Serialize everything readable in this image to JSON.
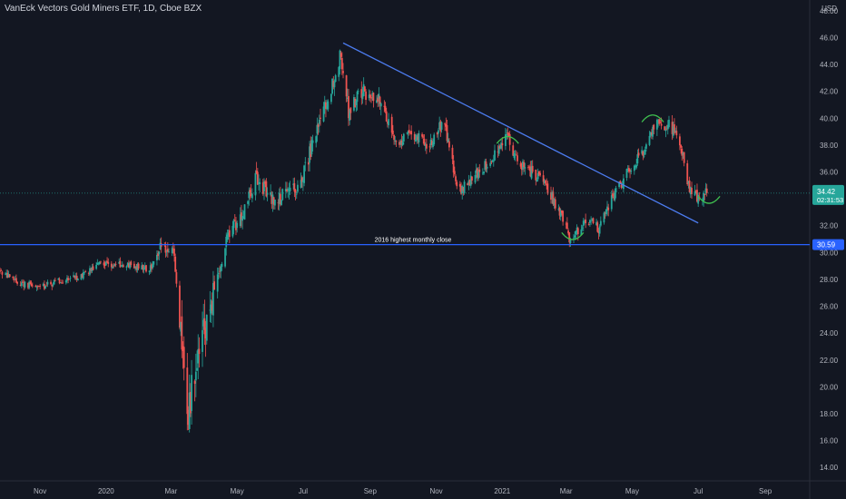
{
  "header": {
    "title": "VanEck Vectors Gold Miners ETF, 1D, Cboe BZX",
    "currency": "USD"
  },
  "chart_data": {
    "type": "candlestick",
    "title": "VanEck Vectors Gold Miners ETF, 1D, Cboe BZX",
    "ylabel": "USD",
    "ylim": [
      13.0,
      48.8
    ],
    "yticks": [
      "14.00",
      "16.00",
      "18.00",
      "20.00",
      "22.00",
      "24.00",
      "26.00",
      "28.00",
      "30.00",
      "32.00",
      "34.00",
      "36.00",
      "38.00",
      "40.00",
      "42.00",
      "44.00",
      "46.00",
      "48.00"
    ],
    "xticks": [
      "Nov",
      "2020",
      "Mar",
      "May",
      "Jul",
      "Sep",
      "Nov",
      "2021",
      "Mar",
      "May",
      "Jul",
      "Sep"
    ],
    "xlim": [
      "2019-09-25",
      "2021-10-12"
    ],
    "grid": false,
    "price_path": [
      [
        "2019-09-25",
        28.6
      ],
      [
        "2019-10-10",
        27.8
      ],
      [
        "2019-11-01",
        27.4
      ],
      [
        "2019-11-20",
        27.9
      ],
      [
        "2019-12-10",
        28.3
      ],
      [
        "2019-12-27",
        29.3
      ],
      [
        "2020-01-08",
        29.1
      ],
      [
        "2020-01-25",
        29.0
      ],
      [
        "2020-02-10",
        28.7
      ],
      [
        "2020-02-21",
        30.6
      ],
      [
        "2020-03-04",
        29.8
      ],
      [
        "2020-03-12",
        22.0
      ],
      [
        "2020-03-16",
        17.0
      ],
      [
        "2020-03-20",
        20.0
      ],
      [
        "2020-04-03",
        25.0
      ],
      [
        "2020-04-22",
        31.0
      ],
      [
        "2020-05-05",
        32.8
      ],
      [
        "2020-05-18",
        35.5
      ],
      [
        "2020-06-05",
        33.8
      ],
      [
        "2020-06-26",
        34.8
      ],
      [
        "2020-07-12",
        38.5
      ],
      [
        "2020-07-28",
        42.5
      ],
      [
        "2020-08-05",
        44.8
      ],
      [
        "2020-08-12",
        40.5
      ],
      [
        "2020-08-25",
        42.0
      ],
      [
        "2020-09-10",
        41.5
      ],
      [
        "2020-09-25",
        38.0
      ],
      [
        "2020-10-08",
        39.0
      ],
      [
        "2020-10-25",
        38.0
      ],
      [
        "2020-11-08",
        39.8
      ],
      [
        "2020-11-22",
        34.5
      ],
      [
        "2020-12-05",
        35.5
      ],
      [
        "2020-12-20",
        36.8
      ],
      [
        "2021-01-06",
        38.7
      ],
      [
        "2021-01-15",
        36.8
      ],
      [
        "2021-02-05",
        35.5
      ],
      [
        "2021-02-20",
        33.5
      ],
      [
        "2021-03-05",
        30.9
      ],
      [
        "2021-03-20",
        32.5
      ],
      [
        "2021-04-01",
        31.8
      ],
      [
        "2021-04-15",
        34.5
      ],
      [
        "2021-04-30",
        36.3
      ],
      [
        "2021-05-12",
        37.5
      ],
      [
        "2021-05-21",
        39.5
      ],
      [
        "2021-06-05",
        39.5
      ],
      [
        "2021-06-15",
        38.0
      ],
      [
        "2021-06-22",
        35.0
      ],
      [
        "2021-07-02",
        34.0
      ],
      [
        "2021-07-09",
        34.42
      ]
    ],
    "last_price": {
      "value": 34.42,
      "label": "34.42",
      "countdown": "02:31:53"
    },
    "horizontal_line": {
      "value": 30.59,
      "label": "30.59",
      "annotation": "2016 highest monthly close"
    },
    "trendline": {
      "from": [
        "2020-08-07",
        45.6
      ],
      "to": [
        "2021-07-01",
        32.2
      ]
    },
    "arcs": [
      {
        "center": [
          "2021-01-06",
          38.4
        ],
        "shape": "top"
      },
      {
        "center": [
          "2021-03-07",
          31.2
        ],
        "shape": "bottom"
      },
      {
        "center": [
          "2021-05-20",
          40.0
        ],
        "shape": "top"
      },
      {
        "center": [
          "2021-07-11",
          33.9
        ],
        "shape": "bottom"
      }
    ],
    "colors": {
      "background": "#131722",
      "up": "#26a69a",
      "down": "#ef5350",
      "trendline": "#4c7cf0",
      "support_line": "#2962ff",
      "last_price_line": "#26a69a",
      "arcs": "#3fbf4f",
      "axis_text": "#b2b5be"
    }
  }
}
